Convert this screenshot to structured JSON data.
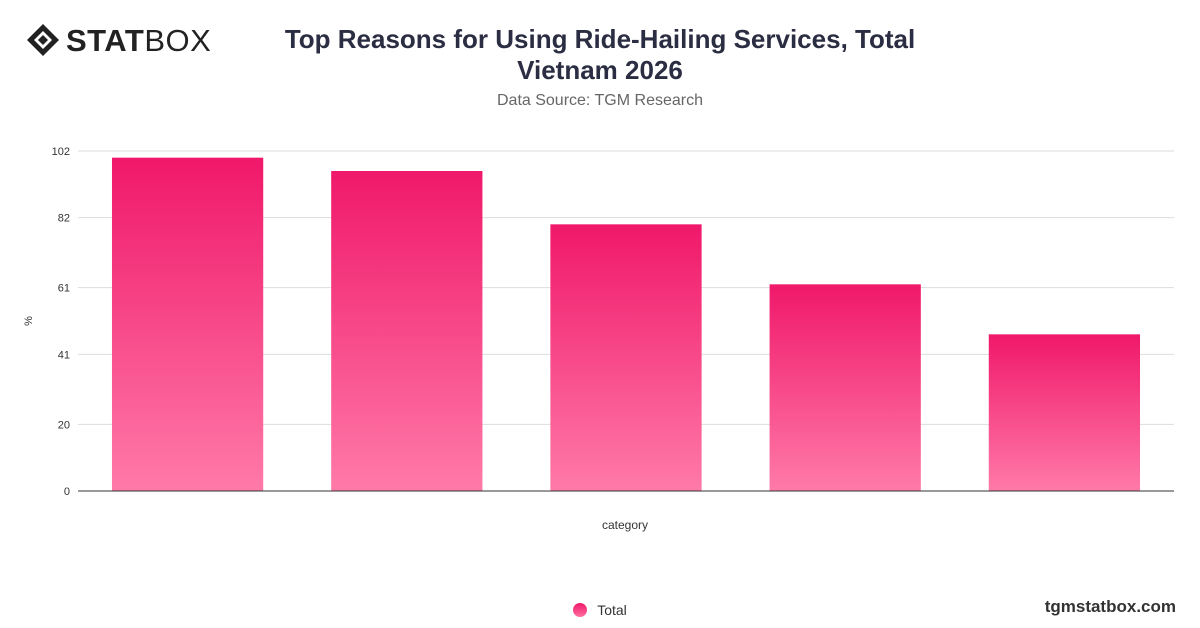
{
  "logo": {
    "bold": "STAT",
    "light": "BOX"
  },
  "title_line1": "Top Reasons for Using Ride-Hailing Services, Total",
  "title_line2": "Vietnam 2026",
  "subtitle": "Data Source: TGM Research",
  "footer": "tgmstatbox.com",
  "colors": {
    "bar_top": "#f0186a",
    "bar_bottom": "#ff7aa8",
    "grid": "#dddddd",
    "axis": "#333333"
  },
  "chart_data": {
    "type": "bar",
    "title": "Top Reasons for Using Ride-Hailing Services, Total Vietnam 2026",
    "xlabel": "category",
    "ylabel": "%",
    "ylim": [
      0,
      102
    ],
    "yticks": [
      0,
      20,
      41,
      61,
      82,
      102
    ],
    "grid": true,
    "legend_position": "bottom",
    "series": [
      {
        "name": "Total",
        "values": [
          100,
          96,
          80,
          62,
          47
        ]
      }
    ]
  }
}
